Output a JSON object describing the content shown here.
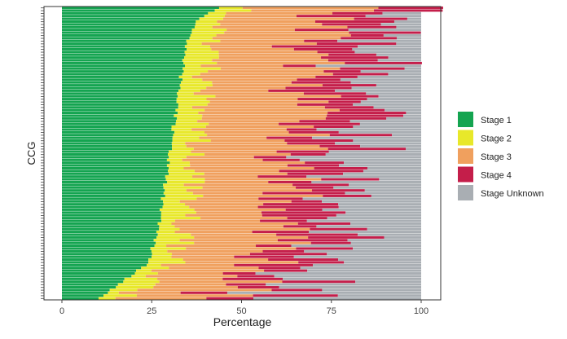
{
  "chart_data": {
    "type": "bar",
    "orientation": "horizontal",
    "stacked": true,
    "title": "",
    "xlabel": "Percentage",
    "ylabel": "CCG",
    "xlim": [
      0,
      100
    ],
    "x_ticks": [
      0,
      25,
      50,
      75,
      100
    ],
    "grid": false,
    "legend_position": "right",
    "n_categories": 106,
    "sort": "ascending by Stage 1 share (bottom to top)",
    "stage1_anchor_quantiles": [
      0,
      0.05,
      0.12,
      0.25,
      0.5,
      0.75,
      0.9,
      0.96,
      1
    ],
    "stage1_anchor_values": [
      10,
      16,
      24,
      27,
      30,
      33,
      35,
      38,
      44
    ],
    "stage2_range": [
      3,
      11
    ],
    "stage3_range": [
      17,
      38
    ],
    "stage4_range": [
      8,
      24
    ],
    "series": [
      {
        "name": "Stage 1",
        "color": "#14a450"
      },
      {
        "name": "Stage 2",
        "color": "#e8e82a"
      },
      {
        "name": "Stage 3",
        "color": "#f0a05e"
      },
      {
        "name": "Stage 4",
        "color": "#c41e4a"
      },
      {
        "name": "Stage Unknown",
        "color": "#a9aeb3"
      }
    ]
  }
}
